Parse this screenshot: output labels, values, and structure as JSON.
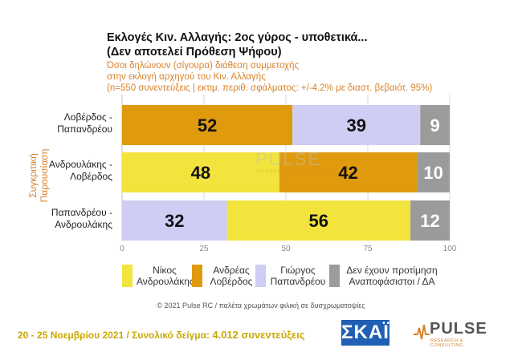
{
  "title_lines": [
    "Εκλογές Κιν. Αλλαγής: 2ος γύρος - υποθετικά...",
    "(Δεν αποτελεί Πρόθεση Ψήφου)"
  ],
  "subtitle_lines": [
    "Όσοι δηλώνουν (σίγουρα) διάθεση συμμετοχής",
    "στην εκλογή αρχηγού του Κιν. Αλλαγής",
    "(n=550 συνεντεύξεις | εκτιμ. περιθ. σφάλματος: +/-4.2% με διαστ. βεβαιότ. 95%)"
  ],
  "colors": {
    "Νίκος Ανδρουλάκης": "#f2e43d",
    "Ανδρέας Λοβέρδος": "#e09a0e",
    "Γιώργος Παπανδρέου": "#cfcdf3",
    "Δεν έχουν προτίμηση Αναποφάσιστοι / ΔΑ": "#9b9b9b"
  },
  "chart_data": {
    "type": "bar",
    "orientation": "horizontal",
    "stacked": true,
    "ylabel": "Συγκριτική Παρουσίαση",
    "xlim": [
      0,
      100
    ],
    "xticks": [
      0,
      25,
      50,
      75,
      100
    ],
    "grid": true,
    "legend_position": "bottom",
    "rows": [
      {
        "label_lines": [
          "Λοβέρδος -",
          "Παπανδρέου"
        ],
        "segments": [
          {
            "series": "Ανδρέας Λοβέρδος",
            "value": 52
          },
          {
            "series": "Γιώργος Παπανδρέου",
            "value": 39
          },
          {
            "series": "Δεν έχουν προτίμηση Αναποφάσιστοι / ΔΑ",
            "value": 9
          }
        ]
      },
      {
        "label_lines": [
          "Ανδρουλάκης -",
          "Λοβέρδος"
        ],
        "segments": [
          {
            "series": "Νίκος Ανδρουλάκης",
            "value": 48
          },
          {
            "series": "Ανδρέας Λοβέρδος",
            "value": 42
          },
          {
            "series": "Δεν έχουν προτίμηση Αναποφάσιστοι / ΔΑ",
            "value": 10
          }
        ]
      },
      {
        "label_lines": [
          "Παπανδρέου -",
          "Ανδρουλάκης"
        ],
        "segments": [
          {
            "series": "Γιώργος Παπανδρέου",
            "value": 32
          },
          {
            "series": "Νίκος Ανδρουλάκης",
            "value": 56
          },
          {
            "series": "Δεν έχουν προτίμηση Αναποφάσιστοι / ΔΑ",
            "value": 12
          }
        ]
      }
    ],
    "series": [
      {
        "name": "Νίκος Ανδρουλάκης",
        "label_lines": [
          "Νίκος",
          "Ανδρουλάκης"
        ]
      },
      {
        "name": "Ανδρέας Λοβέρδος",
        "label_lines": [
          "Ανδρέας",
          "Λοβέρδος"
        ]
      },
      {
        "name": "Γιώργος Παπανδρέου",
        "label_lines": [
          "Γιώργος",
          "Παπανδρέου"
        ]
      },
      {
        "name": "Δεν έχουν προτίμηση Αναποφάσιστοι / ΔΑ",
        "label_lines": [
          "Δεν έχουν προτίμηση",
          "Αναποφάσιστοι / ΔΑ"
        ]
      }
    ]
  },
  "watermark": {
    "name": "PULSE",
    "sub": "RESEARCH & CONSULTING"
  },
  "copyright": "© 2021 Pulse RC   /   παλέτα χρωμάτων φιλική σε δυσχρωματοψίες",
  "footer": {
    "dates": "20 - 25  Νοεμβρίου 2021  /  Συνολικό δείγμα:",
    "sample": "4.012 συνεντεύξεις"
  },
  "logos": {
    "skai": "ΣΚΑΪ",
    "pulse": "PULSE",
    "pulse_sub": "RESEARCH & CONSULTING"
  }
}
